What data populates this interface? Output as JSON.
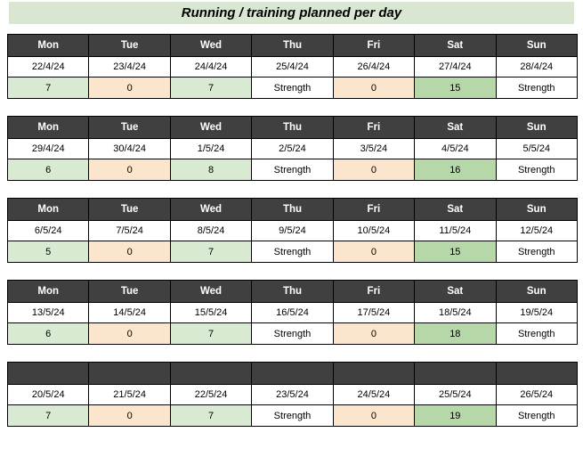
{
  "title": "Running / training planned per day",
  "colors": {
    "title_bg": "#d9e7d2",
    "header_bg": "#404040",
    "header_text": "#ffffff",
    "border": "#000000",
    "fills": {
      "run": "#d9ead3",
      "rest": "#fce5cd",
      "long": "#b6d7a8",
      "strength": "#ffffff"
    }
  },
  "day_headers": [
    "Mon",
    "Tue",
    "Wed",
    "Thu",
    "Fri",
    "Sat",
    "Sun"
  ],
  "value_style_pattern": [
    "run",
    "rest",
    "run",
    "strength",
    "rest",
    "long",
    "strength"
  ],
  "weeks": [
    {
      "show_day_labels": true,
      "dates": [
        "22/4/24",
        "23/4/24",
        "24/4/24",
        "25/4/24",
        "26/4/24",
        "27/4/24",
        "28/4/24"
      ],
      "values": [
        "7",
        "0",
        "7",
        "Strength",
        "0",
        "15",
        "Strength"
      ]
    },
    {
      "show_day_labels": true,
      "dates": [
        "29/4/24",
        "30/4/24",
        "1/5/24",
        "2/5/24",
        "3/5/24",
        "4/5/24",
        "5/5/24"
      ],
      "values": [
        "6",
        "0",
        "8",
        "Strength",
        "0",
        "16",
        "Strength"
      ]
    },
    {
      "show_day_labels": true,
      "dates": [
        "6/5/24",
        "7/5/24",
        "8/5/24",
        "9/5/24",
        "10/5/24",
        "11/5/24",
        "12/5/24"
      ],
      "values": [
        "5",
        "0",
        "7",
        "Strength",
        "0",
        "15",
        "Strength"
      ]
    },
    {
      "show_day_labels": true,
      "dates": [
        "13/5/24",
        "14/5/24",
        "15/5/24",
        "16/5/24",
        "17/5/24",
        "18/5/24",
        "19/5/24"
      ],
      "values": [
        "6",
        "0",
        "7",
        "Strength",
        "0",
        "18",
        "Strength"
      ]
    },
    {
      "show_day_labels": false,
      "dates": [
        "20/5/24",
        "21/5/24",
        "22/5/24",
        "23/5/24",
        "24/5/24",
        "25/5/24",
        "26/5/24"
      ],
      "values": [
        "7",
        "0",
        "7",
        "Strength",
        "0",
        "19",
        "Strength"
      ]
    }
  ]
}
